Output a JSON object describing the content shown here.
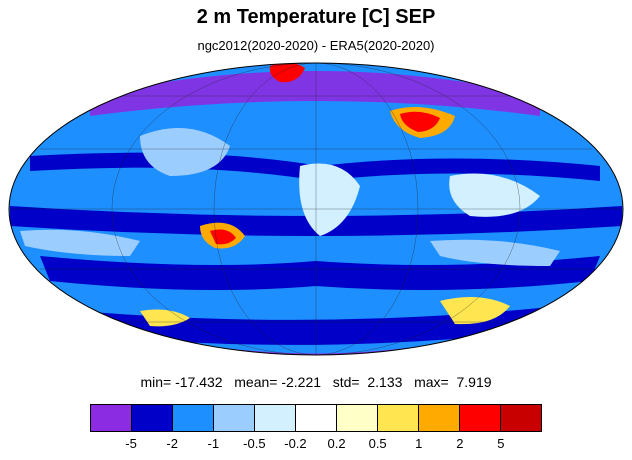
{
  "title": "2 m Temperature [C] SEP",
  "subtitle": "ngc2012(2020-2020) - ERA5(2020-2020)",
  "stats": {
    "min_label": "min=",
    "min": "-17.432",
    "mean_label": "mean=",
    "mean": "-2.221",
    "std_label": "std=",
    "std": "2.133",
    "max_label": "max=",
    "max": "7.919"
  },
  "colorbar": {
    "colors": [
      "#8b2be2",
      "#0000c8",
      "#1e8fff",
      "#9ccdff",
      "#d2f0ff",
      "#ffffff",
      "#ffffc8",
      "#ffe650",
      "#ffaa00",
      "#ff0000",
      "#c80000"
    ],
    "labels": [
      "-5",
      "-2",
      "-1",
      "-0.5",
      "-0.2",
      "0.2",
      "0.5",
      "1",
      "2",
      "5"
    ]
  },
  "map": {
    "projection": "Mollweide",
    "background_color": "#1e8fff",
    "features": [
      {
        "name": "antarctica-region",
        "color": "#8b2be2"
      },
      {
        "name": "arctic-region",
        "color": "#8b2be2"
      },
      {
        "name": "greenland-warm",
        "color": "#ff0000"
      },
      {
        "name": "siberia-warm",
        "color": "#ff0000"
      },
      {
        "name": "south-america-warm",
        "color": "#ff0000"
      },
      {
        "name": "southern-ocean-warm-west",
        "color": "#ffe650"
      },
      {
        "name": "southern-ocean-warm-east",
        "color": "#ffe650"
      },
      {
        "name": "tropical-band-cold",
        "color": "#0000c8"
      }
    ]
  }
}
